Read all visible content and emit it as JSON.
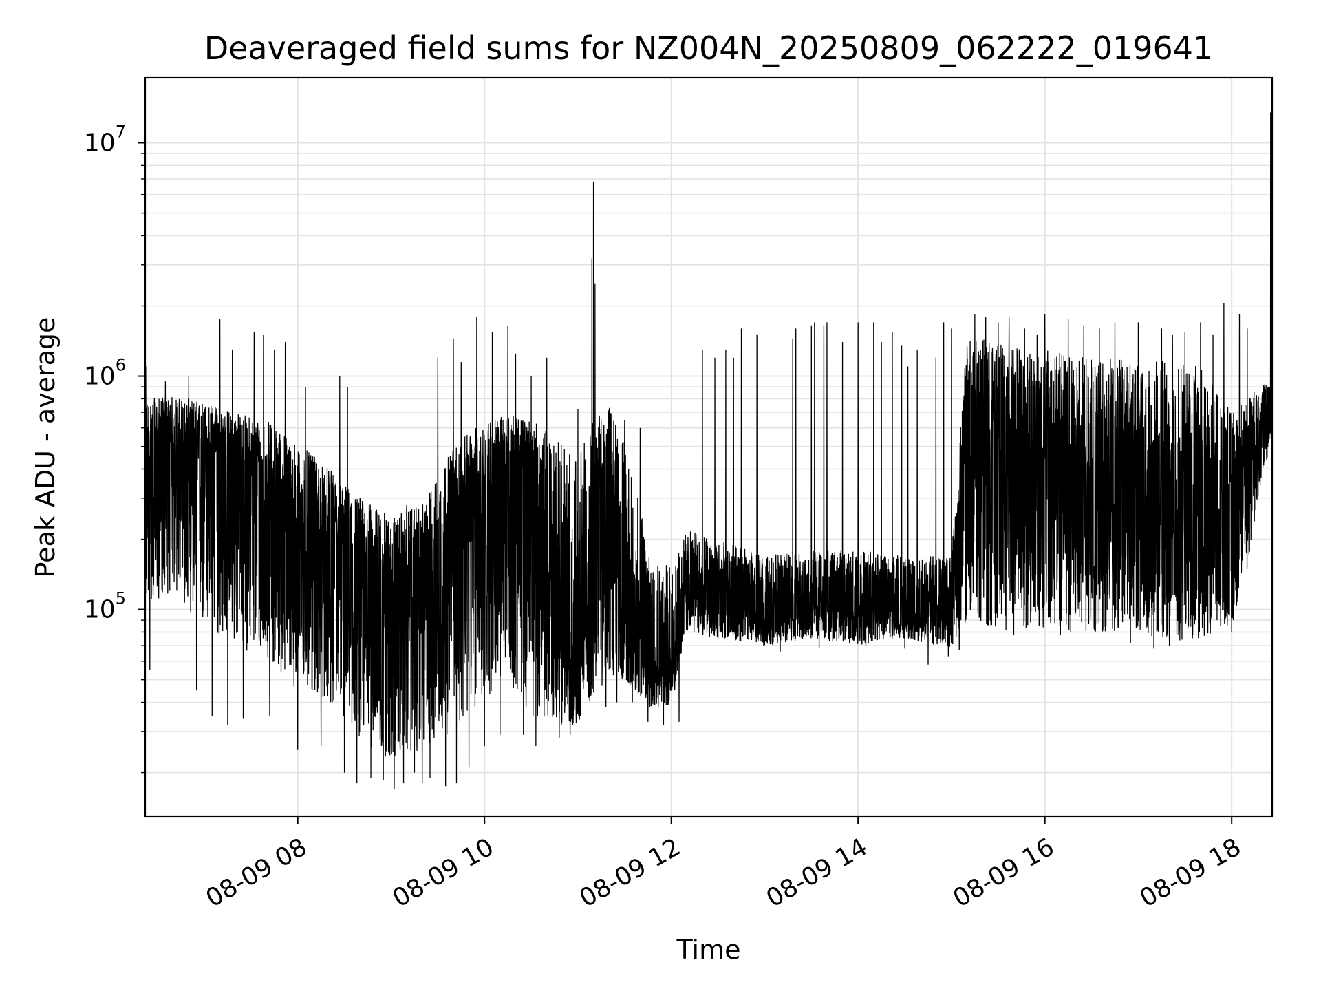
{
  "chart_data": {
    "type": "line",
    "title": "Deaveraged field sums for NZ004N_20250809_062222_019641",
    "xlabel": "Time",
    "ylabel": "Peak ADU - average",
    "yscale": "log",
    "xlim": [
      "2025-08-09 06:22",
      "2025-08-09 18:26"
    ],
    "ylim": [
      13000,
      19000000
    ],
    "x_tick_labels": [
      "08-09 08",
      "08-09 10",
      "08-09 12",
      "08-09 14",
      "08-09 16",
      "08-09 18"
    ],
    "x_tick_times": [
      "2025-08-09 08:00",
      "2025-08-09 10:00",
      "2025-08-09 12:00",
      "2025-08-09 14:00",
      "2025-08-09 16:00",
      "2025-08-09 18:00"
    ],
    "y_ticks": [
      {
        "value": 100000,
        "base": "10",
        "exp": "5"
      },
      {
        "value": 1000000,
        "base": "10",
        "exp": "6"
      },
      {
        "value": 10000000,
        "base": "10",
        "exp": "7"
      }
    ],
    "grid": true,
    "line_color": "#000000",
    "grid_color": "#e3e3e3",
    "series": [
      {
        "envelope": {
          "times": [
            "06:22",
            "06:40",
            "07:00",
            "07:20",
            "07:40",
            "08:00",
            "08:20",
            "08:40",
            "09:00",
            "09:20",
            "09:40",
            "10:00",
            "10:15",
            "10:30",
            "10:45",
            "11:00",
            "11:10",
            "11:20",
            "11:30",
            "11:45",
            "12:00",
            "12:10",
            "12:30",
            "13:00",
            "13:30",
            "14:00",
            "14:30",
            "15:00",
            "15:10",
            "15:30",
            "16:00",
            "16:30",
            "17:00",
            "17:20",
            "17:40",
            "18:00",
            "18:10",
            "18:20",
            "18:26"
          ],
          "median": [
            450000,
            480000,
            470000,
            430000,
            330000,
            220000,
            190000,
            160000,
            130000,
            150000,
            220000,
            320000,
            380000,
            400000,
            90000,
            55000,
            200000,
            420000,
            100000,
            60000,
            55000,
            120000,
            110000,
            95000,
            110000,
            100000,
            105000,
            100000,
            650000,
            600000,
            400000,
            300000,
            300000,
            220000,
            200000,
            250000,
            500000,
            700000,
            720000
          ],
          "low": [
            100000,
            120000,
            80000,
            70000,
            60000,
            45000,
            40000,
            28000,
            22000,
            25000,
            30000,
            40000,
            50000,
            35000,
            32000,
            32000,
            42000,
            50000,
            50000,
            38000,
            38000,
            80000,
            75000,
            70000,
            75000,
            70000,
            75000,
            68000,
            85000,
            80000,
            80000,
            80000,
            80000,
            72000,
            75000,
            85000,
            150000,
            400000,
            480000
          ],
          "high": [
            800000,
            820000,
            780000,
            700000,
            650000,
            520000,
            400000,
            300000,
            250000,
            280000,
            500000,
            650000,
            680000,
            650000,
            550000,
            450000,
            650000,
            750000,
            520000,
            200000,
            150000,
            220000,
            200000,
            170000,
            180000,
            180000,
            175000,
            170000,
            1500000,
            1400000,
            1300000,
            1200000,
            1200000,
            1150000,
            1100000,
            700000,
            800000,
            950000,
            900000
          ]
        },
        "spikes": [
          {
            "t": "06:23",
            "v": 1100000
          },
          {
            "t": "06:35",
            "v": 950000
          },
          {
            "t": "06:50",
            "v": 1000000
          },
          {
            "t": "07:10",
            "v": 1750000
          },
          {
            "t": "07:18",
            "v": 1300000
          },
          {
            "t": "07:25",
            "v": 1400000
          },
          {
            "t": "07:32",
            "v": 1550000
          },
          {
            "t": "07:38",
            "v": 1500000
          },
          {
            "t": "07:45",
            "v": 1300000
          },
          {
            "t": "07:52",
            "v": 1400000
          },
          {
            "t": "08:05",
            "v": 900000
          },
          {
            "t": "08:15",
            "v": 850000
          },
          {
            "t": "08:27",
            "v": 1000000
          },
          {
            "t": "08:32",
            "v": 900000
          },
          {
            "t": "08:40",
            "v": 300000
          },
          {
            "t": "09:10",
            "v": 280000
          },
          {
            "t": "09:25",
            "v": 1300000
          },
          {
            "t": "09:30",
            "v": 1200000
          },
          {
            "t": "09:40",
            "v": 1450000
          },
          {
            "t": "09:45",
            "v": 1150000
          },
          {
            "t": "09:50",
            "v": 1300000
          },
          {
            "t": "09:55",
            "v": 1800000
          },
          {
            "t": "10:00",
            "v": 1500000
          },
          {
            "t": "10:05",
            "v": 1550000
          },
          {
            "t": "10:10",
            "v": 1750000
          },
          {
            "t": "10:15",
            "v": 1650000
          },
          {
            "t": "10:20",
            "v": 1250000
          },
          {
            "t": "10:30",
            "v": 1000000
          },
          {
            "t": "10:40",
            "v": 1200000
          },
          {
            "t": "11:00",
            "v": 720000
          },
          {
            "t": "11:09",
            "v": 3200000
          },
          {
            "t": "11:10",
            "v": 6800000
          },
          {
            "t": "11:11",
            "v": 2500000
          },
          {
            "t": "11:30",
            "v": 650000
          },
          {
            "t": "11:40",
            "v": 600000
          },
          {
            "t": "12:20",
            "v": 1300000
          },
          {
            "t": "12:28",
            "v": 1200000
          },
          {
            "t": "12:35",
            "v": 1300000
          },
          {
            "t": "12:40",
            "v": 1200000
          },
          {
            "t": "12:45",
            "v": 1600000
          },
          {
            "t": "12:55",
            "v": 1500000
          },
          {
            "t": "13:00",
            "v": 1600000
          },
          {
            "t": "13:10",
            "v": 1550000
          },
          {
            "t": "13:18",
            "v": 1450000
          },
          {
            "t": "13:20",
            "v": 1600000
          },
          {
            "t": "13:30",
            "v": 1650000
          },
          {
            "t": "13:32",
            "v": 1700000
          },
          {
            "t": "13:38",
            "v": 1650000
          },
          {
            "t": "13:40",
            "v": 1700000
          },
          {
            "t": "13:50",
            "v": 1400000
          },
          {
            "t": "14:00",
            "v": 1700000
          },
          {
            "t": "14:10",
            "v": 1700000
          },
          {
            "t": "14:15",
            "v": 1400000
          },
          {
            "t": "14:22",
            "v": 1550000
          },
          {
            "t": "14:28",
            "v": 1350000
          },
          {
            "t": "14:32",
            "v": 1100000
          },
          {
            "t": "14:38",
            "v": 1300000
          },
          {
            "t": "14:45",
            "v": 1500000
          },
          {
            "t": "14:50",
            "v": 1200000
          },
          {
            "t": "14:55",
            "v": 1700000
          },
          {
            "t": "15:00",
            "v": 1600000
          },
          {
            "t": "15:05",
            "v": 1650000
          },
          {
            "t": "15:15",
            "v": 1850000
          },
          {
            "t": "15:22",
            "v": 1800000
          },
          {
            "t": "15:30",
            "v": 1700000
          },
          {
            "t": "15:37",
            "v": 1800000
          },
          {
            "t": "15:47",
            "v": 1600000
          },
          {
            "t": "15:55",
            "v": 1500000
          },
          {
            "t": "16:00",
            "v": 1850000
          },
          {
            "t": "16:10",
            "v": 1700000
          },
          {
            "t": "16:15",
            "v": 1750000
          },
          {
            "t": "16:25",
            "v": 1650000
          },
          {
            "t": "16:35",
            "v": 1600000
          },
          {
            "t": "16:45",
            "v": 1700000
          },
          {
            "t": "16:55",
            "v": 1500000
          },
          {
            "t": "17:00",
            "v": 1700000
          },
          {
            "t": "17:10",
            "v": 1700000
          },
          {
            "t": "17:15",
            "v": 1600000
          },
          {
            "t": "17:22",
            "v": 1500000
          },
          {
            "t": "17:30",
            "v": 1550000
          },
          {
            "t": "17:40",
            "v": 1700000
          },
          {
            "t": "17:48",
            "v": 1500000
          },
          {
            "t": "17:55",
            "v": 2050000
          },
          {
            "t": "18:00",
            "v": 1300000
          },
          {
            "t": "18:05",
            "v": 1850000
          },
          {
            "t": "18:10",
            "v": 1600000
          },
          {
            "t": "18:25",
            "v": 13500000
          }
        ],
        "dips": [
          {
            "t": "06:25",
            "v": 55000
          },
          {
            "t": "06:55",
            "v": 45000
          },
          {
            "t": "07:05",
            "v": 35000
          },
          {
            "t": "07:15",
            "v": 32000
          },
          {
            "t": "07:25",
            "v": 34000
          },
          {
            "t": "07:42",
            "v": 35000
          },
          {
            "t": "08:00",
            "v": 25000
          },
          {
            "t": "08:15",
            "v": 26000
          },
          {
            "t": "08:30",
            "v": 20000
          },
          {
            "t": "08:38",
            "v": 18000
          },
          {
            "t": "08:47",
            "v": 19000
          },
          {
            "t": "08:55",
            "v": 18500
          },
          {
            "t": "09:02",
            "v": 17000
          },
          {
            "t": "09:08",
            "v": 18000
          },
          {
            "t": "09:15",
            "v": 20000
          },
          {
            "t": "09:20",
            "v": 18000
          },
          {
            "t": "09:25",
            "v": 19000
          },
          {
            "t": "09:35",
            "v": 17500
          },
          {
            "t": "09:42",
            "v": 18000
          },
          {
            "t": "09:50",
            "v": 21000
          },
          {
            "t": "10:00",
            "v": 26000
          },
          {
            "t": "10:10",
            "v": 29000
          },
          {
            "t": "10:25",
            "v": 29000
          },
          {
            "t": "10:33",
            "v": 26000
          },
          {
            "t": "10:48",
            "v": 28000
          },
          {
            "t": "10:55",
            "v": 29000
          },
          {
            "t": "11:18",
            "v": 38000
          },
          {
            "t": "11:25",
            "v": 40000
          },
          {
            "t": "11:35",
            "v": 40000
          },
          {
            "t": "11:45",
            "v": 33000
          },
          {
            "t": "11:55",
            "v": 32000
          },
          {
            "t": "12:05",
            "v": 33000
          },
          {
            "t": "12:30",
            "v": 75000
          },
          {
            "t": "13:00",
            "v": 72000
          },
          {
            "t": "13:10",
            "v": 66000
          },
          {
            "t": "13:35",
            "v": 68000
          },
          {
            "t": "14:05",
            "v": 70000
          },
          {
            "t": "14:30",
            "v": 68000
          },
          {
            "t": "14:45",
            "v": 58000
          },
          {
            "t": "14:58",
            "v": 63000
          },
          {
            "t": "15:05",
            "v": 67000
          },
          {
            "t": "15:40",
            "v": 78000
          },
          {
            "t": "16:10",
            "v": 78000
          },
          {
            "t": "16:55",
            "v": 72000
          },
          {
            "t": "17:10",
            "v": 68000
          },
          {
            "t": "17:20",
            "v": 70000
          },
          {
            "t": "17:35",
            "v": 78000
          },
          {
            "t": "18:00",
            "v": 80000
          }
        ]
      }
    ]
  }
}
